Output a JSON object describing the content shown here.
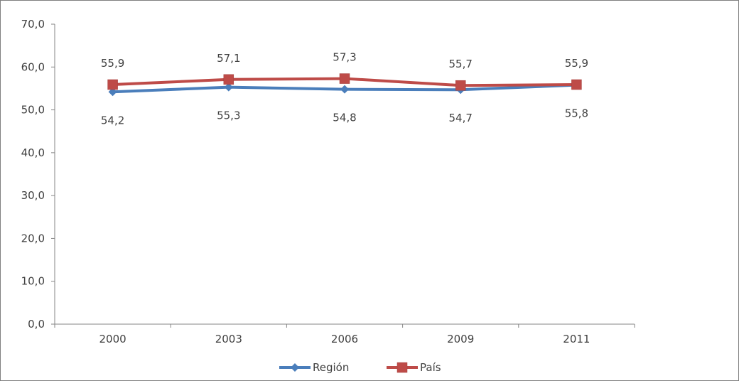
{
  "chart_data": {
    "type": "line",
    "categories": [
      "2000",
      "2003",
      "2006",
      "2009",
      "2011"
    ],
    "series": [
      {
        "name": "Región",
        "values": [
          54.2,
          55.3,
          54.8,
          54.7,
          55.8
        ],
        "color": "#4a7ebb",
        "marker": "diamond",
        "label_position": "below"
      },
      {
        "name": "País",
        "values": [
          55.9,
          57.1,
          57.3,
          55.7,
          55.9
        ],
        "color": "#be4b48",
        "marker": "square",
        "label_position": "above"
      }
    ],
    "y_ticks": [
      "0,0",
      "10,0",
      "20,0",
      "30,0",
      "40,0",
      "50,0",
      "60,0",
      "70,0"
    ],
    "ylim": [
      0,
      70
    ],
    "data_labels": {
      "Región": [
        "54,2",
        "55,3",
        "54,8",
        "54,7",
        "55,8"
      ],
      "País": [
        "55,9",
        "57,1",
        "57,3",
        "55,7",
        "55,9"
      ]
    },
    "legend_position": "bottom",
    "grid": false
  }
}
